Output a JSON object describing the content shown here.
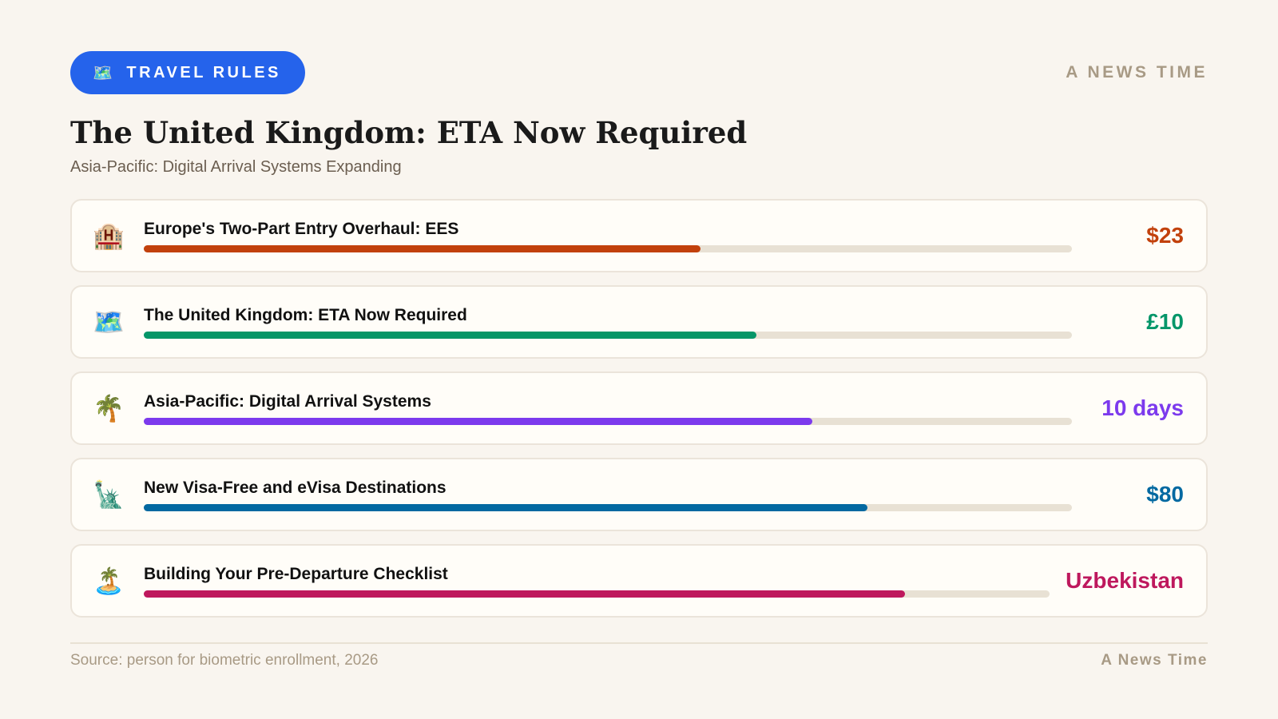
{
  "header": {
    "badge": "TRAVEL RULES",
    "brand": "A NEWS TIME",
    "title": "The United Kingdom: ETA Now Required",
    "subtitle": "Asia-Pacific: Digital Arrival Systems Expanding"
  },
  "items": [
    {
      "label": "Europe's Two-Part Entry Overhaul: EES",
      "value": "$23",
      "progress": 60,
      "color": "#c2410c"
    },
    {
      "label": "The United Kingdom: ETA Now Required",
      "value": "£10",
      "progress": 66,
      "color": "#059669"
    },
    {
      "label": "Asia-Pacific: Digital Arrival Systems",
      "value": "10 days",
      "progress": 72,
      "color": "#7c3aed"
    },
    {
      "label": "New Visa-Free and eVisa Destinations",
      "value": "$80",
      "progress": 78,
      "color": "#0369a1"
    },
    {
      "label": "Building Your Pre-Departure Checklist",
      "value": "Uzbekistan",
      "progress": 84,
      "color": "#be185d"
    }
  ],
  "footer": {
    "source": "Source: person for biometric enrollment, 2026",
    "brand": "A News Time"
  }
}
